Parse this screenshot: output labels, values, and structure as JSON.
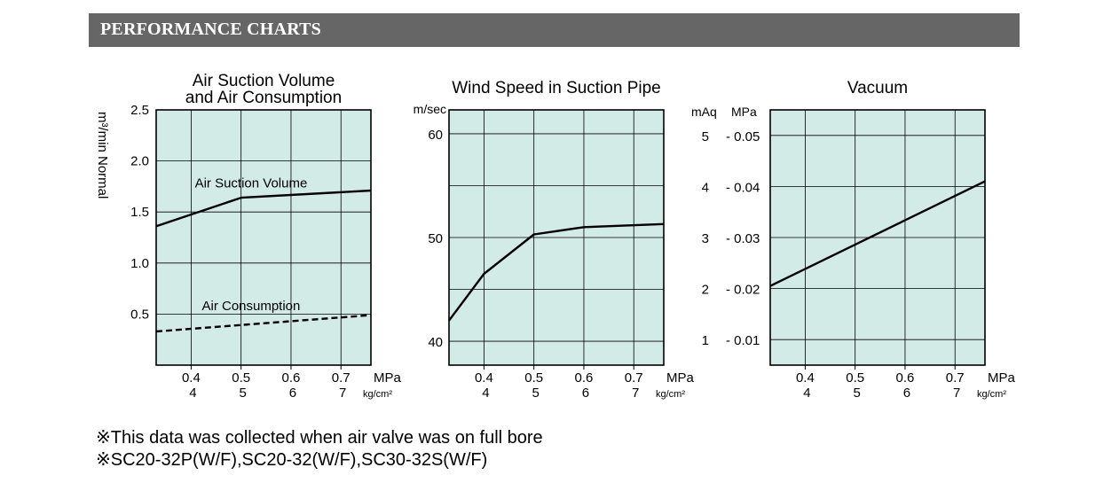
{
  "header": {
    "title": "PERFORMANCE CHARTS"
  },
  "notes": [
    "※This data was collected when air valve was on full bore",
    "※SC20-32P(W/F),SC20-32(W/F),SC30-32S(W/F)"
  ],
  "chart_data": [
    {
      "type": "line",
      "title": [
        "Air Suction Volume",
        "and Air Consumption"
      ],
      "ylabel": "m³/min Normal",
      "xlabel": "",
      "x_unit": "MPa",
      "x_unit2": "kg/cm²",
      "xlim": [
        0.33,
        0.76
      ],
      "ylim": [
        0,
        2.5
      ],
      "x_ticks": [
        0.4,
        0.5,
        0.6,
        0.7
      ],
      "x_tick_labels": [
        "0.4",
        "0.5",
        "0.6",
        "0.7"
      ],
      "x_tick_labels2": [
        "4",
        "5",
        "6",
        "7"
      ],
      "y_ticks": [
        0.5,
        1.0,
        1.5,
        2.0,
        2.5
      ],
      "y_tick_labels": [
        "0.5",
        "1.0",
        "1.5",
        "2.0",
        "2.5"
      ],
      "grid": true,
      "background": "#d3ebe7",
      "series": [
        {
          "name": "Air Suction Volume",
          "style": "solid",
          "x": [
            0.33,
            0.5,
            0.76
          ],
          "y": [
            1.36,
            1.64,
            1.71
          ]
        },
        {
          "name": "Air Consumption",
          "style": "dashed",
          "x": [
            0.33,
            0.76
          ],
          "y": [
            0.33,
            0.49
          ]
        }
      ],
      "annotations": [
        {
          "text": "Air Suction Volume",
          "x": 0.52,
          "y": 1.74
        },
        {
          "text": "Air Consumption",
          "x": 0.52,
          "y": 0.54
        }
      ]
    },
    {
      "type": "line",
      "title": [
        "Wind Speed in Suction Pipe"
      ],
      "y_unit": "m/sec",
      "x_unit": "MPa",
      "x_unit2": "kg/cm²",
      "xlim": [
        0.33,
        0.76
      ],
      "ylim": [
        37.7,
        62.3
      ],
      "x_ticks": [
        0.4,
        0.5,
        0.6,
        0.7
      ],
      "x_tick_labels": [
        "0.4",
        "0.5",
        "0.6",
        "0.7"
      ],
      "x_tick_labels2": [
        "4",
        "5",
        "6",
        "7"
      ],
      "y_ticks": [
        40,
        50,
        60
      ],
      "y_tick_labels": [
        "40",
        "50",
        "60"
      ],
      "grid_y": [
        40,
        45,
        50,
        55,
        60
      ],
      "grid": true,
      "background": "#d3ebe7",
      "series": [
        {
          "style": "solid",
          "x": [
            0.33,
            0.4,
            0.5,
            0.6,
            0.76
          ],
          "y": [
            42,
            46.5,
            50.3,
            51,
            51.3
          ]
        }
      ]
    },
    {
      "type": "line",
      "title": [
        "Vacuum"
      ],
      "y_unit": "mAq",
      "y_unit2": "MPa",
      "x_unit": "MPa",
      "x_unit2": "kg/cm²",
      "xlim": [
        0.33,
        0.76
      ],
      "ylim": [
        0.5,
        5.5
      ],
      "x_ticks": [
        0.4,
        0.5,
        0.6,
        0.7
      ],
      "x_tick_labels": [
        "0.4",
        "0.5",
        "0.6",
        "0.7"
      ],
      "x_tick_labels2": [
        "4",
        "5",
        "6",
        "7"
      ],
      "y_ticks": [
        1,
        2,
        3,
        4,
        5
      ],
      "y_tick_labels": [
        "1",
        "2",
        "3",
        "4",
        "5"
      ],
      "y_tick_labels2": [
        "- 0.01",
        "- 0.02",
        "- 0.03",
        "- 0.04",
        "- 0.05"
      ],
      "grid": true,
      "background": "#d3ebe7",
      "series": [
        {
          "style": "solid",
          "x": [
            0.33,
            0.76
          ],
          "y": [
            2.05,
            4.1
          ]
        }
      ]
    }
  ]
}
